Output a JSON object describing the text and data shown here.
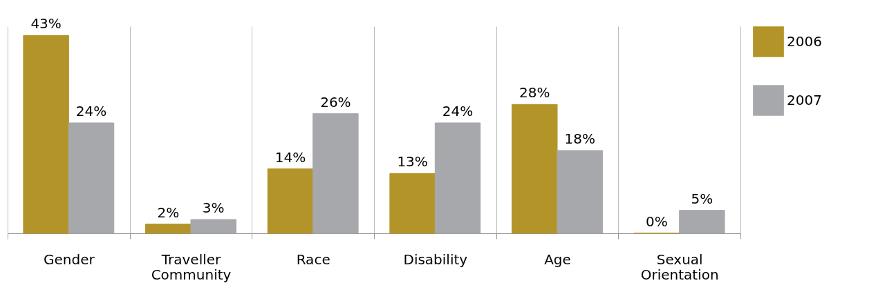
{
  "chart_data": {
    "type": "bar",
    "categories": [
      "Gender",
      "Traveller Community",
      "Race",
      "Disability",
      "Age",
      "Sexual Orientation"
    ],
    "series": [
      {
        "name": "2006",
        "color": "#b39429",
        "values": [
          43,
          2,
          14,
          13,
          28,
          0
        ],
        "value_labels": [
          "43%",
          "2%",
          "14%",
          "13%",
          "28%",
          "0%"
        ]
      },
      {
        "name": "2007",
        "color": "#a7a8ab",
        "values": [
          24,
          3,
          26,
          24,
          18,
          5
        ],
        "value_labels": [
          "24%",
          "3%",
          "26%",
          "24%",
          "18%",
          "5%"
        ]
      }
    ],
    "grid": "x",
    "legend": "right"
  }
}
